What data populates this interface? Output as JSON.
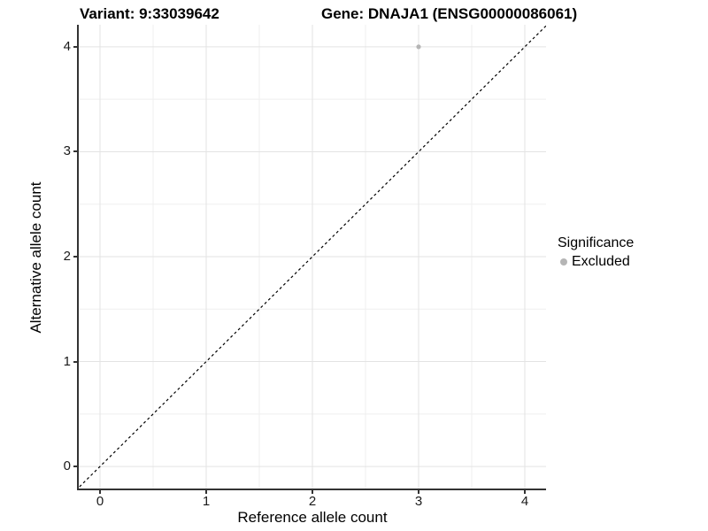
{
  "titles": {
    "variant": "Variant: 9:33039642",
    "gene": "Gene: DNAJA1 (ENSG00000086061)"
  },
  "chart_data": {
    "type": "scatter",
    "title": "Variant: 9:33039642  Gene: DNAJA1 (ENSG00000086061)",
    "xlabel": "Reference allele count",
    "ylabel": "Alternative allele count",
    "xlim": [
      -0.2,
      4.2
    ],
    "ylim": [
      -0.21,
      4.21
    ],
    "x_ticks": [
      0,
      1,
      2,
      3,
      4
    ],
    "y_ticks": [
      0,
      1,
      2,
      3,
      4
    ],
    "x_minor_ticks": [
      0.5,
      1.5,
      2.5,
      3.5
    ],
    "y_minor_ticks": [
      0.5,
      1.5,
      2.5,
      3.5
    ],
    "grid": true,
    "legend_position": "right",
    "series": [
      {
        "name": "Excluded",
        "color": "#b5b5b5",
        "points": [
          {
            "x": 3,
            "y": 4
          }
        ]
      }
    ],
    "reference_line": {
      "kind": "identity",
      "style": "dashed",
      "color": "#000000",
      "from": -0.3,
      "to": 4.4
    },
    "colors": {
      "grid_major": "#e3e3e3",
      "grid_minor": "#efefef",
      "axis_line": "#333333",
      "tick_text": "#1a1a1a",
      "point_excluded": "#b5b5b5"
    }
  },
  "legend": {
    "title": "Significance",
    "items": [
      {
        "label": "Excluded",
        "color": "#b5b5b5"
      }
    ]
  }
}
